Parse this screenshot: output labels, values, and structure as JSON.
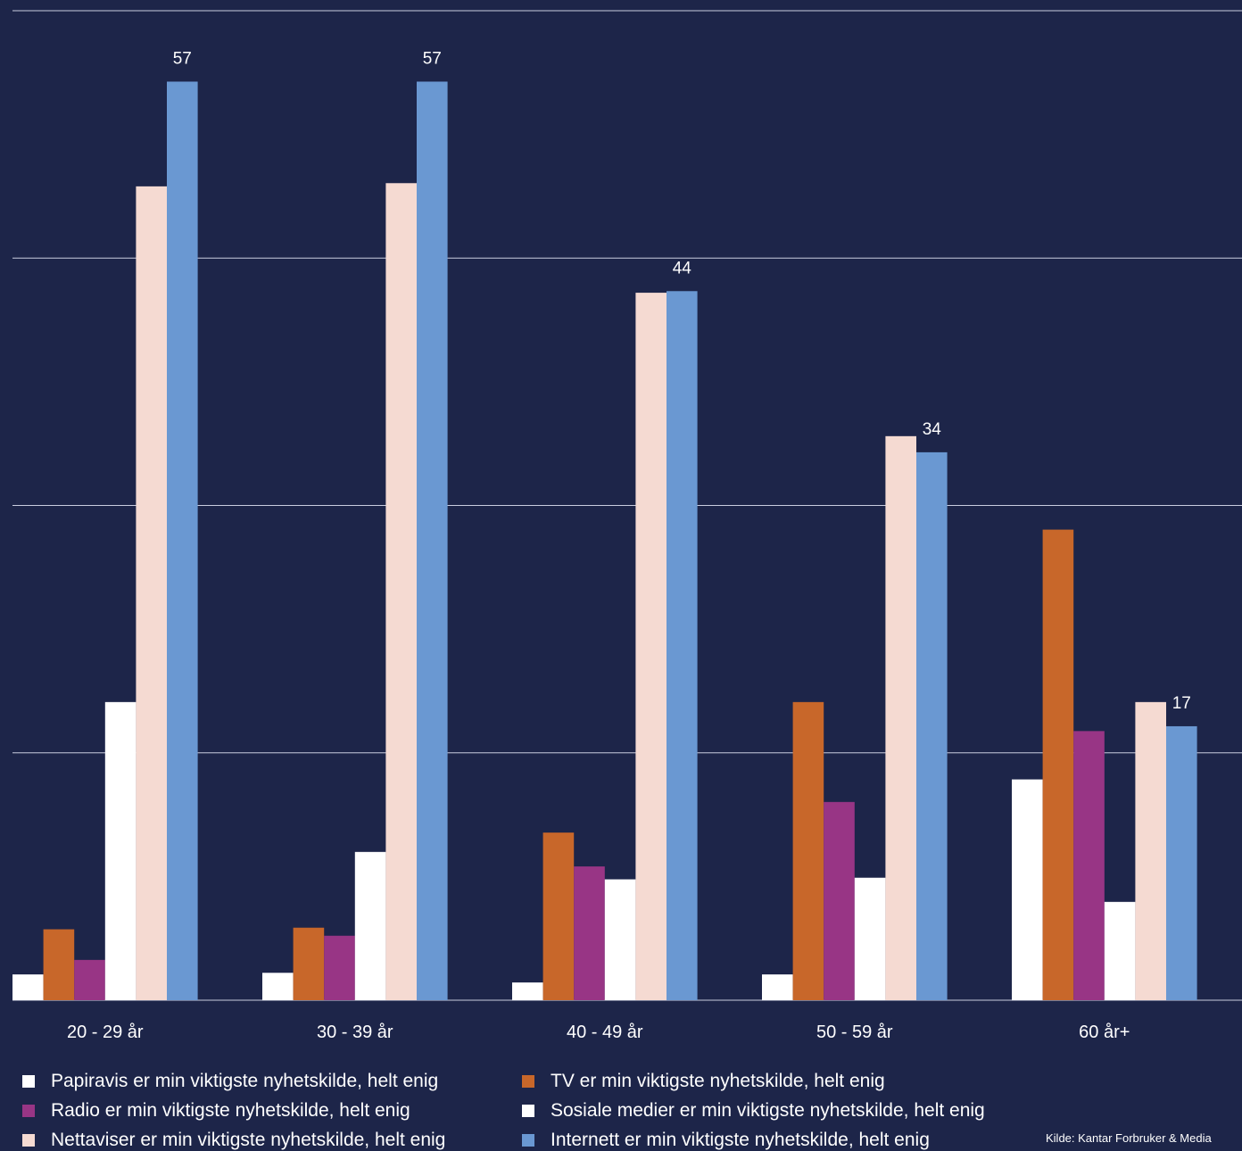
{
  "chart_data": {
    "type": "bar",
    "categories": [
      "20 - 29 år",
      "30 - 39 år",
      "40 - 49 år",
      "50 - 59 år",
      "60 år+"
    ],
    "series": [
      {
        "name": "Papiravis er min viktigste nyhetskilde, helt enig",
        "color": "#ffffff",
        "values": [
          1.6,
          1.7,
          1.1,
          1.6,
          13.7
        ]
      },
      {
        "name": "TV er min viktigste nyhetskilde, helt enig",
        "color": "#c8672a",
        "values": [
          4.4,
          4.5,
          10.4,
          18.5,
          29.2
        ]
      },
      {
        "name": "Radio er min viktigste nyhetskilde, helt enig",
        "color": "#983585",
        "values": [
          2.5,
          4.0,
          8.3,
          12.3,
          16.7
        ]
      },
      {
        "name": "Sosiale medier er min viktigste nyhetskilde, helt enig",
        "color": "#ffffff",
        "values": [
          18.5,
          9.2,
          7.5,
          7.6,
          6.1
        ]
      },
      {
        "name": "Nettaviser er min viktigste nyhetskilde, helt enig",
        "color": "#f5dad2",
        "values": [
          50.5,
          50.7,
          43.9,
          35.0,
          18.5
        ]
      },
      {
        "name": "Internett er min viktigste nyhetskilde, helt enig",
        "color": "#6a98d2",
        "values": [
          57,
          57,
          44,
          34,
          17
        ]
      }
    ],
    "data_labels": [
      "57",
      "57",
      "44",
      "34",
      "17"
    ],
    "ylim": [
      0,
      61.4
    ],
    "gridlines": [
      0,
      15.35,
      30.7,
      46.05,
      61.4
    ],
    "grid": true,
    "legend_position": "bottom",
    "source": "Kilde: Kantar Forbruker & Media"
  }
}
